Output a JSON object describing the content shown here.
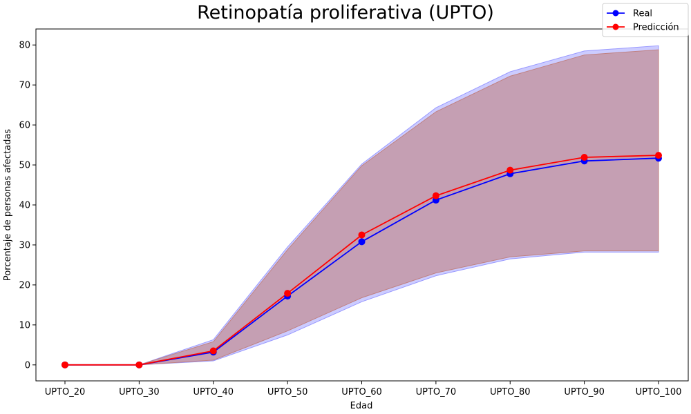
{
  "chart_data": {
    "type": "line",
    "title": "Retinopatía proliferativa (UPTO)",
    "xlabel": "Edad",
    "ylabel": "Porcentaje de personas afectadas",
    "categories": [
      "UPTO_20",
      "UPTO_30",
      "UPTO_40",
      "UPTO_50",
      "UPTO_60",
      "UPTO_70",
      "UPTO_80",
      "UPTO_90",
      "UPTO_100"
    ],
    "ylim": [
      -4,
      84
    ],
    "yticks": [
      0,
      10,
      20,
      30,
      40,
      50,
      60,
      70,
      80
    ],
    "grid": false,
    "legend_position": "top-right",
    "series": [
      {
        "name": "Real",
        "color": "#0000ff",
        "values": [
          0,
          0,
          3.2,
          17.2,
          30.8,
          41.2,
          47.8,
          51.0,
          51.7
        ],
        "band_lower": [
          0,
          0,
          1.0,
          7.5,
          15.8,
          22.3,
          26.5,
          28.2,
          28.2
        ],
        "band_upper": [
          0,
          0,
          6.3,
          29.5,
          50.2,
          64.3,
          73.3,
          78.5,
          79.8
        ],
        "band_color": "#9999ff"
      },
      {
        "name": "Predicción",
        "color": "#ff0000",
        "values": [
          0,
          0,
          3.5,
          17.9,
          32.5,
          42.3,
          48.7,
          51.9,
          52.4
        ],
        "band_lower": [
          0,
          0,
          1.2,
          8.5,
          16.8,
          23.0,
          27.0,
          28.5,
          28.5
        ],
        "band_upper": [
          0,
          0,
          5.8,
          28.8,
          49.8,
          63.3,
          72.2,
          77.5,
          78.8
        ],
        "band_color": "#c08080"
      }
    ]
  }
}
